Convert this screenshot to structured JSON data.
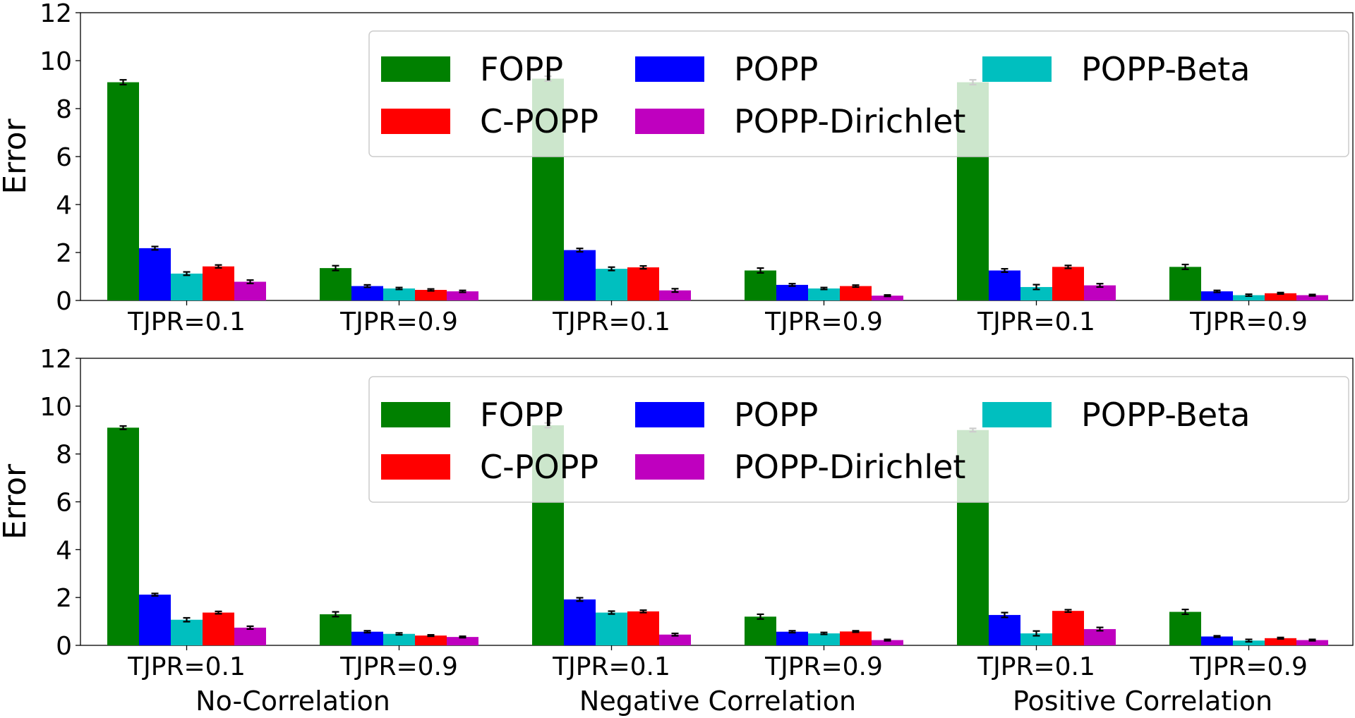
{
  "chart_data": [
    {
      "type": "bar",
      "ylabel": "Error",
      "ylim": [
        0,
        12
      ],
      "yticks": [
        0,
        2,
        4,
        6,
        8,
        10,
        12
      ],
      "categories": [
        "TJPR=0.1",
        "TJPR=0.9",
        "TJPR=0.1",
        "TJPR=0.9",
        "TJPR=0.1",
        "TJPR=0.9"
      ],
      "groups": [],
      "legend": {
        "placement": "top-right",
        "columns": 3
      },
      "series": [
        {
          "name": "FOPP",
          "color": "#008000",
          "values": [
            9.1,
            1.35,
            9.25,
            1.25,
            9.1,
            1.4
          ],
          "errors": [
            0.1,
            0.1,
            0.1,
            0.1,
            0.1,
            0.1
          ]
        },
        {
          "name": "POPP",
          "color": "#0000ff",
          "values": [
            2.18,
            0.6,
            2.1,
            0.65,
            1.25,
            0.38
          ],
          "errors": [
            0.07,
            0.05,
            0.07,
            0.05,
            0.07,
            0.04
          ]
        },
        {
          "name": "POPP-Beta",
          "color": "#00bfbf",
          "values": [
            1.12,
            0.5,
            1.32,
            0.5,
            0.56,
            0.22
          ],
          "errors": [
            0.07,
            0.04,
            0.07,
            0.04,
            0.1,
            0.04
          ]
        },
        {
          "name": "C-POPP",
          "color": "#ff0000",
          "values": [
            1.42,
            0.44,
            1.38,
            0.6,
            1.4,
            0.3
          ],
          "errors": [
            0.06,
            0.04,
            0.06,
            0.04,
            0.06,
            0.03
          ]
        },
        {
          "name": "POPP-Dirichlet",
          "color": "#bf00bf",
          "values": [
            0.78,
            0.38,
            0.42,
            0.2,
            0.63,
            0.22
          ],
          "errors": [
            0.07,
            0.04,
            0.07,
            0.03,
            0.07,
            0.03
          ]
        }
      ]
    },
    {
      "type": "bar",
      "ylabel": "Error",
      "ylim": [
        0,
        12
      ],
      "yticks": [
        0,
        2,
        4,
        6,
        8,
        10,
        12
      ],
      "categories": [
        "TJPR=0.1",
        "TJPR=0.9",
        "TJPR=0.1",
        "TJPR=0.9",
        "TJPR=0.1",
        "TJPR=0.9"
      ],
      "groups": [
        "No-Correlation",
        "Negative Correlation",
        "Positive Correlation"
      ],
      "legend": {
        "placement": "top-right",
        "columns": 3
      },
      "series": [
        {
          "name": "FOPP",
          "color": "#008000",
          "values": [
            9.1,
            1.3,
            9.2,
            1.2,
            9.0,
            1.4
          ],
          "errors": [
            0.07,
            0.1,
            0.1,
            0.1,
            0.07,
            0.1
          ]
        },
        {
          "name": "POPP",
          "color": "#0000ff",
          "values": [
            2.12,
            0.57,
            1.92,
            0.57,
            1.27,
            0.37
          ],
          "errors": [
            0.05,
            0.04,
            0.07,
            0.04,
            0.1,
            0.03
          ]
        },
        {
          "name": "POPP-Beta",
          "color": "#00bfbf",
          "values": [
            1.07,
            0.48,
            1.37,
            0.5,
            0.5,
            0.2
          ],
          "errors": [
            0.08,
            0.04,
            0.06,
            0.04,
            0.1,
            0.05
          ]
        },
        {
          "name": "C-POPP",
          "color": "#ff0000",
          "values": [
            1.37,
            0.41,
            1.42,
            0.58,
            1.44,
            0.3
          ],
          "errors": [
            0.05,
            0.03,
            0.05,
            0.03,
            0.05,
            0.03
          ]
        },
        {
          "name": "POPP-Dirichlet",
          "color": "#bf00bf",
          "values": [
            0.74,
            0.35,
            0.45,
            0.22,
            0.68,
            0.22
          ],
          "errors": [
            0.06,
            0.03,
            0.05,
            0.03,
            0.07,
            0.03
          ]
        }
      ]
    }
  ]
}
